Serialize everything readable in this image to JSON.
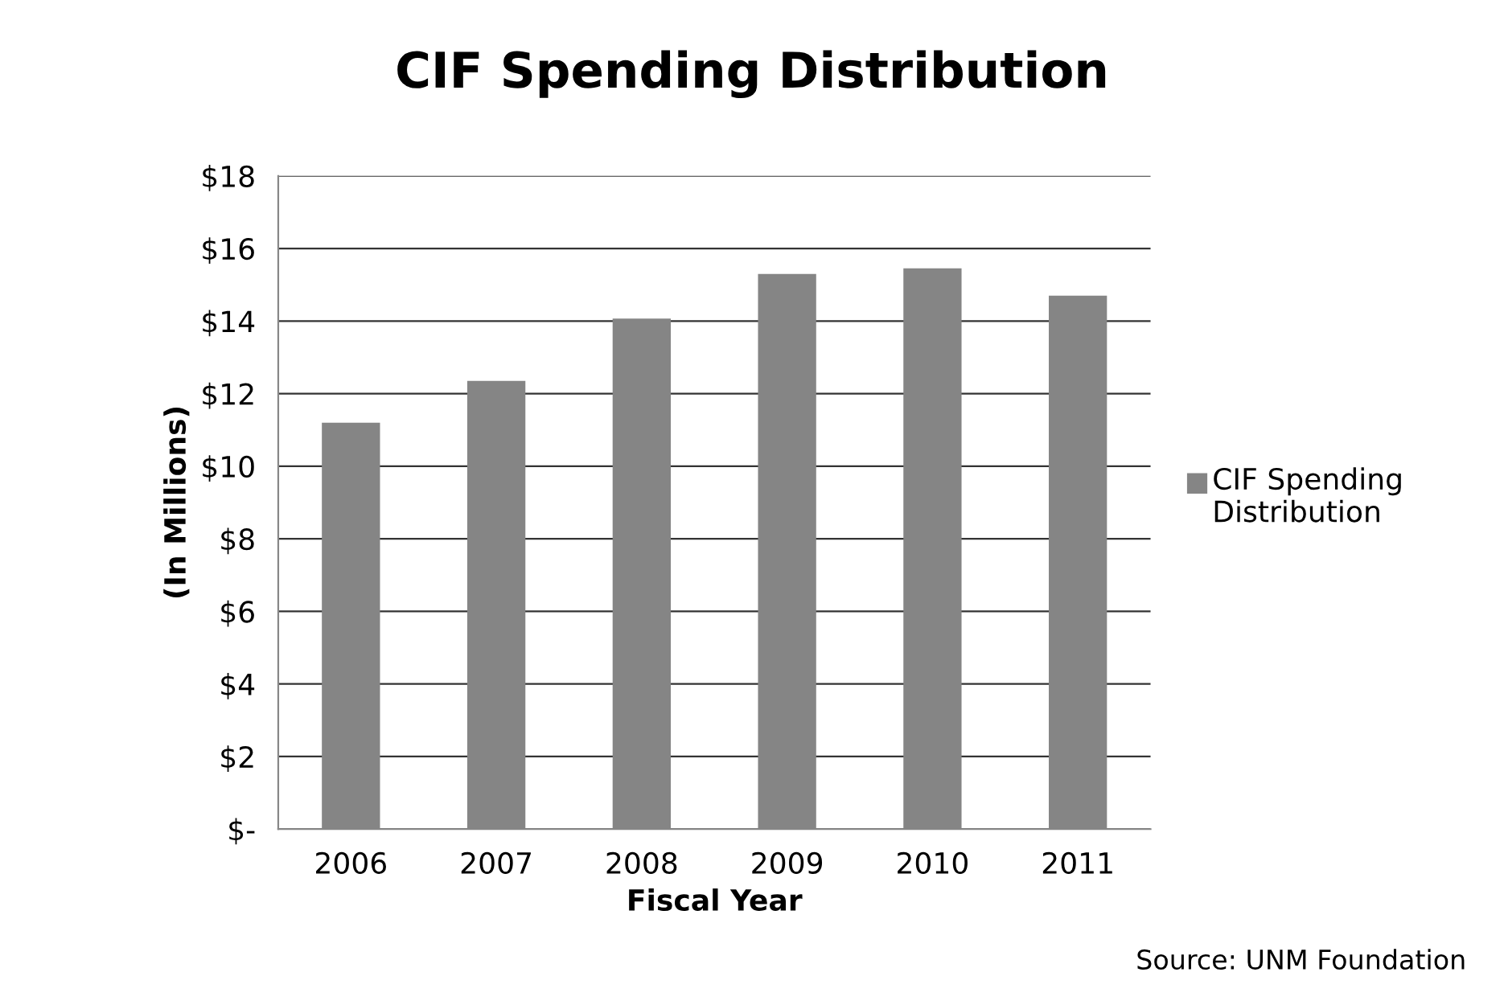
{
  "chart_data": {
    "type": "bar",
    "title": "CIF Spending Distribution",
    "xlabel": "Fiscal Year",
    "ylabel": "(In Millions)",
    "categories": [
      "2006",
      "2007",
      "2008",
      "2009",
      "2010",
      "2011"
    ],
    "series": [
      {
        "name": "CIF Spending Distribution",
        "color": "#858585",
        "values": [
          11.2,
          12.35,
          14.07,
          15.3,
          15.45,
          14.7
        ]
      }
    ],
    "ylim": [
      0,
      18
    ],
    "yticks": [
      {
        "value": 0,
        "label": "$-"
      },
      {
        "value": 2,
        "label": "$2"
      },
      {
        "value": 4,
        "label": "$4"
      },
      {
        "value": 6,
        "label": "$6"
      },
      {
        "value": 8,
        "label": "$8"
      },
      {
        "value": 10,
        "label": "$10"
      },
      {
        "value": 12,
        "label": "$12"
      },
      {
        "value": 14,
        "label": "$14"
      },
      {
        "value": 16,
        "label": "$16"
      },
      {
        "value": 18,
        "label": "$18"
      }
    ],
    "grid": "y",
    "legend": "right",
    "annotations": [
      "Source: UNM Foundation"
    ]
  }
}
